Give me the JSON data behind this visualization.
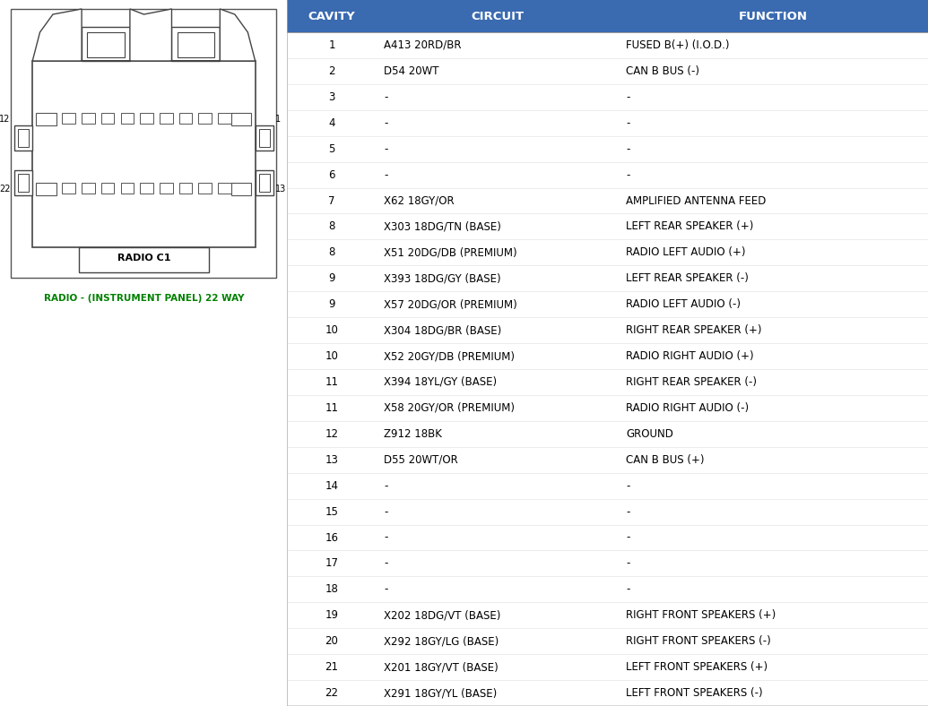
{
  "header_bg_color": "#3A6AB0",
  "header_text_color": "#FFFFFF",
  "header_labels": [
    "CAVITY",
    "CIRCUIT",
    "FUNCTION"
  ],
  "text_color": "#000000",
  "connector_label_color": "#008000",
  "connector_title": "RADIO C1",
  "connector_subtitle": "RADIO - (INSTRUMENT PANEL) 22 WAY",
  "rows": [
    [
      "1",
      "A413 20RD/BR",
      "FUSED B(+) (I.O.D.)"
    ],
    [
      "2",
      "D54 20WT",
      "CAN B BUS (-)"
    ],
    [
      "3",
      "-",
      "-"
    ],
    [
      "4",
      "-",
      "-"
    ],
    [
      "5",
      "-",
      "-"
    ],
    [
      "6",
      "-",
      "-"
    ],
    [
      "7",
      "X62 18GY/OR",
      "AMPLIFIED ANTENNA FEED"
    ],
    [
      "8",
      "X303 18DG/TN (BASE)",
      "LEFT REAR SPEAKER (+)"
    ],
    [
      "8",
      "X51 20DG/DB (PREMIUM)",
      "RADIO LEFT AUDIO (+)"
    ],
    [
      "9",
      "X393 18DG/GY (BASE)",
      "LEFT REAR SPEAKER (-)"
    ],
    [
      "9",
      "X57 20DG/OR (PREMIUM)",
      "RADIO LEFT AUDIO (-)"
    ],
    [
      "10",
      "X304 18DG/BR (BASE)",
      "RIGHT REAR SPEAKER (+)"
    ],
    [
      "10",
      "X52 20GY/DB (PREMIUM)",
      "RADIO RIGHT AUDIO (+)"
    ],
    [
      "11",
      "X394 18YL/GY (BASE)",
      "RIGHT REAR SPEAKER (-)"
    ],
    [
      "11",
      "X58 20GY/OR (PREMIUM)",
      "RADIO RIGHT AUDIO (-)"
    ],
    [
      "12",
      "Z912 18BK",
      "GROUND"
    ],
    [
      "13",
      "D55 20WT/OR",
      "CAN B BUS (+)"
    ],
    [
      "14",
      "-",
      "-"
    ],
    [
      "15",
      "-",
      "-"
    ],
    [
      "16",
      "-",
      "-"
    ],
    [
      "17",
      "-",
      "-"
    ],
    [
      "18",
      "-",
      "-"
    ],
    [
      "19",
      "X202 18DG/VT (BASE)",
      "RIGHT FRONT SPEAKERS (+)"
    ],
    [
      "20",
      "X292 18GY/LG (BASE)",
      "RIGHT FRONT SPEAKERS (-)"
    ],
    [
      "21",
      "X201 18GY/VT (BASE)",
      "LEFT FRONT SPEAKERS (+)"
    ],
    [
      "22",
      "X291 18GY/YL (BASE)",
      "LEFT FRONT SPEAKERS (-)"
    ]
  ],
  "fig_bg": "#FFFFFF"
}
